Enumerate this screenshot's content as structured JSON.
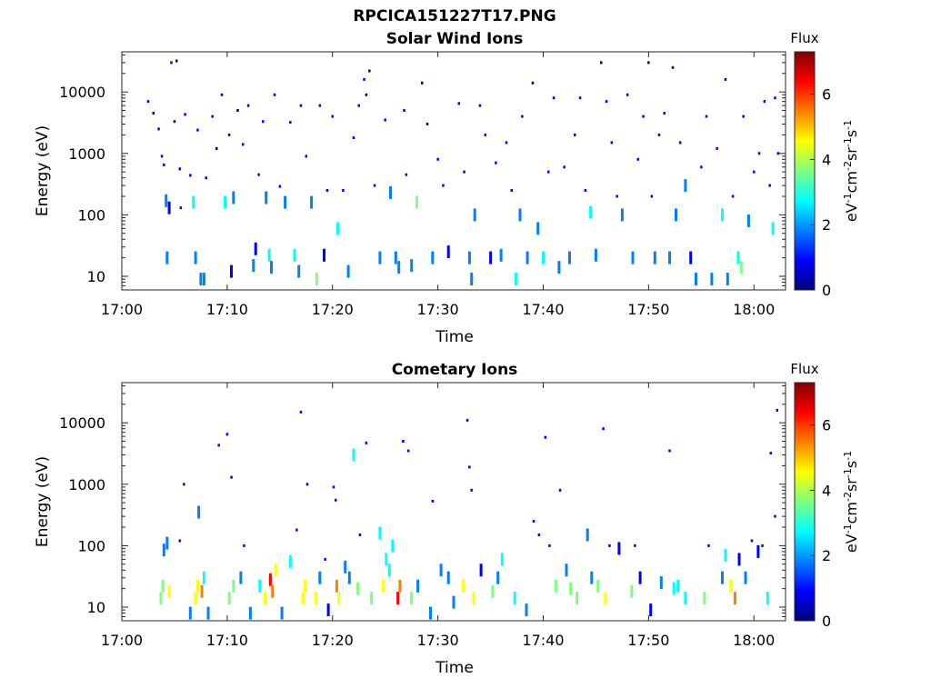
{
  "figure": {
    "title": "RPCICA151227T17.PNG"
  },
  "colormap": [
    "#00007f",
    "#0000ff",
    "#007fff",
    "#00ffff",
    "#7fff7f",
    "#ffff00",
    "#ff7f00",
    "#ff0000",
    "#7f0000"
  ],
  "chart_data": [
    {
      "type": "heatmap",
      "title": "Solar Wind Ions",
      "xlabel": "Time",
      "ylabel": "Energy (eV)",
      "x_ticks": [
        "17:00",
        "17:10",
        "17:20",
        "17:30",
        "17:40",
        "17:50",
        "18:00"
      ],
      "y_ticks": [
        "10",
        "100",
        "1000",
        "10000"
      ],
      "y_scale": "log",
      "ylim": [
        6,
        45000
      ],
      "xlim_minutes": [
        0,
        63
      ],
      "colorbar": {
        "title": "Flux",
        "units": "eV-1cm-2sr-1s-1",
        "range": [
          0,
          7.3
        ],
        "ticks": [
          "0",
          "2",
          "4",
          "6"
        ]
      },
      "points": [
        [
          2.5,
          7000,
          0.5
        ],
        [
          3,
          4500,
          0.4
        ],
        [
          3.5,
          2500,
          0.5
        ],
        [
          3.8,
          900,
          0.6
        ],
        [
          4,
          650,
          0.5
        ],
        [
          4.2,
          170,
          1.4
        ],
        [
          4.3,
          20,
          1.8
        ],
        [
          4.5,
          130,
          1.2
        ],
        [
          4.7,
          30000,
          0.5
        ],
        [
          5,
          3300,
          0.4
        ],
        [
          5.2,
          32000,
          0.4
        ],
        [
          5.5,
          560,
          0.6
        ],
        [
          5.6,
          130,
          1.0
        ],
        [
          6,
          4300,
          0.5
        ],
        [
          6.5,
          440,
          0.5
        ],
        [
          6.8,
          160,
          3.0
        ],
        [
          7,
          20,
          1.6
        ],
        [
          7.2,
          2400,
          0.6
        ],
        [
          7.5,
          9,
          1.6
        ],
        [
          7.8,
          9,
          1.4
        ],
        [
          8,
          400,
          0.5
        ],
        [
          8.6,
          4000,
          0.5
        ],
        [
          9,
          1200,
          0.4
        ],
        [
          9.5,
          9000,
          0.6
        ],
        [
          9.8,
          160,
          2.4
        ],
        [
          10.2,
          2000,
          0.5
        ],
        [
          10.4,
          12,
          1.2
        ],
        [
          10.6,
          190,
          1.6
        ],
        [
          11,
          5000,
          0.4
        ],
        [
          11.5,
          1400,
          0.6
        ],
        [
          12,
          6000,
          0.7
        ],
        [
          12.5,
          15,
          1.4
        ],
        [
          12.7,
          28,
          1.2
        ],
        [
          13,
          450,
          0.5
        ],
        [
          13.4,
          3300,
          0.6
        ],
        [
          13.7,
          190,
          1.5
        ],
        [
          14,
          22,
          2.3
        ],
        [
          14.2,
          14,
          1.8
        ],
        [
          14.5,
          9000,
          0.5
        ],
        [
          15,
          290,
          0.8
        ],
        [
          15.5,
          160,
          1.5
        ],
        [
          16,
          3200,
          0.6
        ],
        [
          16.4,
          22,
          2.8
        ],
        [
          16.8,
          12,
          1.4
        ],
        [
          17,
          6000,
          0.5
        ],
        [
          17.5,
          900,
          0.7
        ],
        [
          18,
          160,
          2.2
        ],
        [
          18.5,
          9,
          3.8
        ],
        [
          18.8,
          6000,
          0.5
        ],
        [
          19.2,
          22,
          1.2
        ],
        [
          19.5,
          250,
          0.5
        ],
        [
          20,
          4000,
          0.6
        ],
        [
          20.5,
          60,
          2.5
        ],
        [
          21,
          250,
          0.6
        ],
        [
          21.5,
          12,
          1.4
        ],
        [
          22,
          1800,
          0.5
        ],
        [
          22.5,
          6000,
          0.5
        ],
        [
          23,
          16000,
          0.6
        ],
        [
          23.2,
          9000,
          0.4
        ],
        [
          23.5,
          22000,
          0.4
        ],
        [
          24,
          300,
          0.7
        ],
        [
          24.5,
          20,
          1.4
        ],
        [
          25,
          3500,
          0.6
        ],
        [
          25.5,
          230,
          1.5
        ],
        [
          26,
          20,
          2.2
        ],
        [
          26.3,
          14,
          1.6
        ],
        [
          26.8,
          5000,
          0.5
        ],
        [
          27,
          450,
          0.6
        ],
        [
          27.5,
          15,
          1.4
        ],
        [
          28,
          160,
          3.2
        ],
        [
          28.5,
          14000,
          0.4
        ],
        [
          29,
          3000,
          0.6
        ],
        [
          29.5,
          20,
          1.4
        ],
        [
          30,
          800,
          0.6
        ],
        [
          30.5,
          300,
          0.7
        ],
        [
          31,
          25,
          1.3
        ],
        [
          32,
          6500,
          0.5
        ],
        [
          32.5,
          500,
          0.5
        ],
        [
          33,
          20,
          2.0
        ],
        [
          33.2,
          9,
          2.2
        ],
        [
          33.5,
          100,
          2.1
        ],
        [
          34,
          6000,
          0.5
        ],
        [
          34.5,
          2000,
          0.6
        ],
        [
          35,
          20,
          1.3
        ],
        [
          35.5,
          700,
          0.6
        ],
        [
          36,
          22,
          1.5
        ],
        [
          36.5,
          1500,
          0.6
        ],
        [
          37,
          250,
          0.7
        ],
        [
          37.4,
          9,
          2.4
        ],
        [
          37.8,
          100,
          2.2
        ],
        [
          38,
          4000,
          0.5
        ],
        [
          38.5,
          20,
          1.4
        ],
        [
          39,
          14000,
          0.4
        ],
        [
          39.5,
          60,
          1.8
        ],
        [
          40,
          20,
          2.5
        ],
        [
          40.5,
          500,
          0.7
        ],
        [
          41,
          8000,
          0.5
        ],
        [
          41.5,
          14,
          1.5
        ],
        [
          42,
          600,
          0.6
        ],
        [
          42.5,
          20,
          1.4
        ],
        [
          43,
          2000,
          0.6
        ],
        [
          43.5,
          8000,
          0.5
        ],
        [
          44,
          250,
          0.6
        ],
        [
          44.5,
          110,
          2.6
        ],
        [
          45,
          22,
          2.2
        ],
        [
          45.5,
          30000,
          0.4
        ],
        [
          46,
          7000,
          0.5
        ],
        [
          46.5,
          1500,
          0.5
        ],
        [
          47,
          200,
          0.7
        ],
        [
          47.5,
          100,
          1.9
        ],
        [
          48,
          9000,
          0.5
        ],
        [
          48.5,
          20,
          1.6
        ],
        [
          49,
          800,
          0.6
        ],
        [
          49.5,
          4000,
          0.5
        ],
        [
          50,
          30000,
          0.4
        ],
        [
          50.3,
          200,
          0.7
        ],
        [
          50.6,
          20,
          1.7
        ],
        [
          51,
          2000,
          0.6
        ],
        [
          51.5,
          4500,
          0.5
        ],
        [
          52,
          20,
          1.4
        ],
        [
          52.3,
          25000,
          0.5
        ],
        [
          52.6,
          100,
          2.0
        ],
        [
          53,
          1500,
          0.7
        ],
        [
          53.5,
          300,
          1.6
        ],
        [
          54,
          20,
          1.2
        ],
        [
          54.5,
          9,
          1.6
        ],
        [
          55,
          600,
          0.6
        ],
        [
          55.5,
          4000,
          0.5
        ],
        [
          56,
          9,
          1.6
        ],
        [
          56.5,
          1200,
          0.7
        ],
        [
          57,
          100,
          2.8
        ],
        [
          57.3,
          16000,
          0.4
        ],
        [
          57.5,
          9,
          2.0
        ],
        [
          58,
          200,
          0.8
        ],
        [
          58.5,
          20,
          2.8
        ],
        [
          58.8,
          14,
          3.5
        ],
        [
          59,
          4000,
          0.5
        ],
        [
          59.5,
          80,
          1.5
        ],
        [
          60,
          500,
          0.8
        ],
        [
          60.5,
          1000,
          0.6
        ],
        [
          61,
          7000,
          0.5
        ],
        [
          61.5,
          300,
          0.7
        ],
        [
          61.8,
          60,
          3.0
        ],
        [
          62,
          8000,
          0.6
        ],
        [
          62.3,
          1000,
          0.5
        ]
      ]
    },
    {
      "type": "heatmap",
      "title": "Cometary Ions",
      "xlabel": "Time",
      "ylabel": "Energy (eV)",
      "x_ticks": [
        "17:00",
        "17:10",
        "17:20",
        "17:30",
        "17:40",
        "17:50",
        "18:00"
      ],
      "y_ticks": [
        "10",
        "100",
        "1000",
        "10000"
      ],
      "y_scale": "log",
      "ylim": [
        6,
        45000
      ],
      "xlim_minutes": [
        0,
        63
      ],
      "colorbar": {
        "title": "Flux",
        "units": "eV-1cm-2sr-1s-1",
        "range": [
          0,
          7.3
        ],
        "ticks": [
          "0",
          "2",
          "4",
          "6"
        ]
      },
      "points": [
        [
          3.7,
          14,
          4.0
        ],
        [
          3.9,
          22,
          3.2
        ],
        [
          4.0,
          85,
          1.4
        ],
        [
          4.3,
          110,
          1.8
        ],
        [
          4.5,
          18,
          4.2
        ],
        [
          5.5,
          120,
          0.9
        ],
        [
          5.9,
          1000,
          0.6
        ],
        [
          6.5,
          8,
          1.8
        ],
        [
          7,
          14,
          5.0
        ],
        [
          7.2,
          22,
          4.4
        ],
        [
          7.3,
          350,
          2.2
        ],
        [
          7.6,
          18,
          5.4
        ],
        [
          7.8,
          30,
          2.4
        ],
        [
          8.2,
          8,
          1.4
        ],
        [
          9.2,
          4300,
          0.5
        ],
        [
          10,
          6500,
          0.5
        ],
        [
          10.2,
          14,
          4.1
        ],
        [
          10.4,
          1300,
          0.6
        ],
        [
          10.6,
          22,
          3.5
        ],
        [
          11.3,
          30,
          1.6
        ],
        [
          11.6,
          100,
          0.6
        ],
        [
          12.2,
          8,
          1.4
        ],
        [
          13.1,
          22,
          3.0
        ],
        [
          13.6,
          14,
          4.6
        ],
        [
          14.1,
          28,
          6.0
        ],
        [
          14.3,
          18,
          5.6
        ],
        [
          14.6,
          40,
          4.8
        ],
        [
          15.2,
          8,
          1.4
        ],
        [
          16,
          55,
          2.5
        ],
        [
          16.6,
          180,
          0.6
        ],
        [
          17.0,
          15000,
          0.5
        ],
        [
          17.2,
          14,
          4.6
        ],
        [
          17.4,
          22,
          4.2
        ],
        [
          17.6,
          1000,
          0.6
        ],
        [
          18.4,
          14,
          4.3
        ],
        [
          18.8,
          30,
          2.2
        ],
        [
          19.3,
          60,
          1.0
        ],
        [
          19.6,
          9,
          1.2
        ],
        [
          20.1,
          900,
          0.7
        ],
        [
          20.3,
          550,
          0.6
        ],
        [
          20.4,
          22,
          5.3
        ],
        [
          20.6,
          14,
          5.0
        ],
        [
          21.2,
          45,
          1.6
        ],
        [
          21.6,
          30,
          2.2
        ],
        [
          22.0,
          3000,
          2.4
        ],
        [
          22.4,
          20,
          3.5
        ],
        [
          22.6,
          150,
          1.0
        ],
        [
          23.2,
          4700,
          0.5
        ],
        [
          23.7,
          14,
          3.7
        ],
        [
          24.5,
          160,
          2.4
        ],
        [
          24.8,
          22,
          4.5
        ],
        [
          25.1,
          60,
          2.5
        ],
        [
          25.4,
          40,
          2.8
        ],
        [
          25.7,
          100,
          2.9
        ],
        [
          26.2,
          14,
          6.0
        ],
        [
          26.4,
          22,
          5.6
        ],
        [
          26.7,
          5000,
          0.5
        ],
        [
          27.2,
          3500,
          0.6
        ],
        [
          27.5,
          14,
          4.0
        ],
        [
          28.1,
          22,
          1.6
        ],
        [
          29.3,
          8,
          1.6
        ],
        [
          29.5,
          530,
          0.7
        ],
        [
          30.3,
          40,
          1.4
        ],
        [
          31.0,
          30,
          1.6
        ],
        [
          31.5,
          12,
          1.4
        ],
        [
          32.4,
          22,
          4.5
        ],
        [
          32.8,
          11000,
          0.5
        ],
        [
          33.0,
          1900,
          0.6
        ],
        [
          33.2,
          800,
          0.6
        ],
        [
          33.4,
          14,
          4.2
        ],
        [
          34.1,
          40,
          1.2
        ],
        [
          35.2,
          18,
          3.5
        ],
        [
          35.7,
          30,
          1.6
        ],
        [
          36.1,
          60,
          2.5
        ],
        [
          37.3,
          14,
          3.0
        ],
        [
          38.4,
          9,
          1.4
        ],
        [
          39.1,
          250,
          0.7
        ],
        [
          39.6,
          150,
          0.8
        ],
        [
          40.2,
          5800,
          0.6
        ],
        [
          40.6,
          100,
          1.0
        ],
        [
          41.2,
          22,
          3.4
        ],
        [
          41.6,
          800,
          0.6
        ],
        [
          42.2,
          40,
          1.4
        ],
        [
          42.6,
          20,
          4.0
        ],
        [
          43.2,
          14,
          3.5
        ],
        [
          44.2,
          150,
          2.2
        ],
        [
          44.6,
          30,
          2.0
        ],
        [
          45.2,
          22,
          3.5
        ],
        [
          45.7,
          8000,
          0.5
        ],
        [
          45.9,
          14,
          4.8
        ],
        [
          46.3,
          100,
          0.8
        ],
        [
          47.2,
          90,
          1.2
        ],
        [
          48.4,
          18,
          3.6
        ],
        [
          48.7,
          100,
          0.8
        ],
        [
          49.2,
          30,
          1.2
        ],
        [
          50.2,
          9,
          1.2
        ],
        [
          51.2,
          25,
          1.6
        ],
        [
          52.0,
          3500,
          0.6
        ],
        [
          52.4,
          20,
          2.4
        ],
        [
          52.8,
          22,
          3.0
        ],
        [
          53.5,
          14,
          2.6
        ],
        [
          55.3,
          14,
          3.5
        ],
        [
          55.7,
          100,
          0.7
        ],
        [
          57.0,
          30,
          1.8
        ],
        [
          57.3,
          70,
          2.6
        ],
        [
          57.8,
          22,
          4.4
        ],
        [
          58.2,
          14,
          5.2
        ],
        [
          58.6,
          60,
          1.2
        ],
        [
          59.2,
          30,
          1.6
        ],
        [
          59.8,
          120,
          0.8
        ],
        [
          60.4,
          80,
          1.2
        ],
        [
          60.8,
          100,
          0.8
        ],
        [
          61.3,
          14,
          2.8
        ],
        [
          61.6,
          3200,
          0.6
        ],
        [
          62.0,
          300,
          1.0
        ],
        [
          62.2,
          16000,
          0.7
        ]
      ]
    }
  ]
}
